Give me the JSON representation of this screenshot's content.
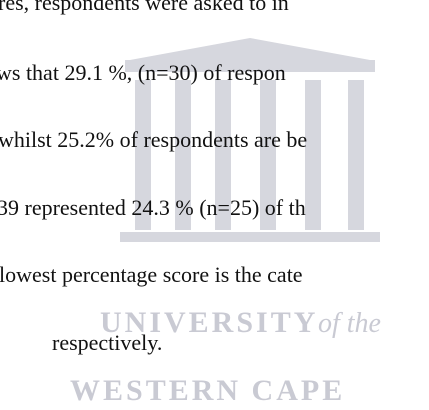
{
  "document": {
    "lines": [
      "res, respondents were asked to in",
      "ws that  29.1 %, (n=30) of respon",
      "whilst 25.2% of respondents are be",
      "39 represented 24.3 % (n=25) of th",
      "lowest percentage score is the cate",
      "respectively."
    ],
    "watermark": {
      "line1": "UNIVERSITY",
      "line1_suffix": "of the",
      "line2": "WESTERN CAPE"
    }
  }
}
